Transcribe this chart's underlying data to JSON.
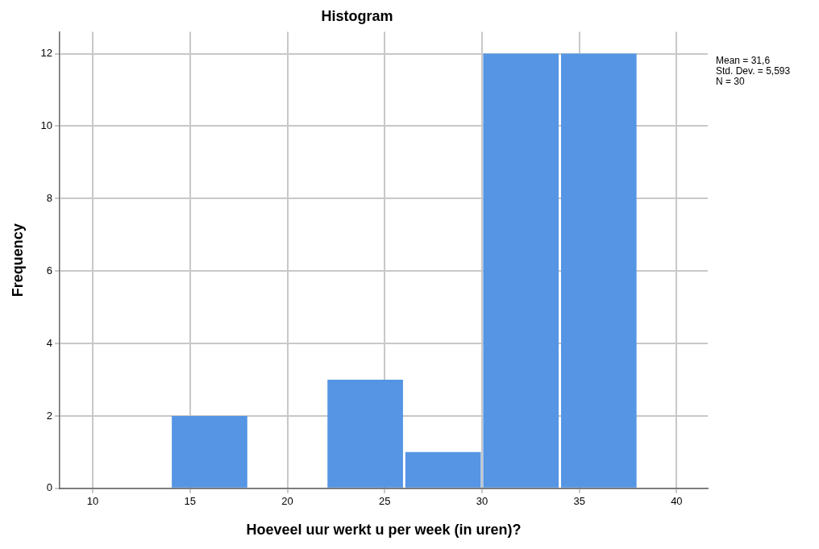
{
  "chart_data": {
    "type": "histogram",
    "title": "Histogram",
    "xlabel": "Hoeveel uur werkt u per week (in uren)?",
    "ylabel": "Frequency",
    "bins": [
      14,
      18,
      22,
      26,
      30,
      34,
      38
    ],
    "values": [
      2,
      0,
      3,
      1,
      12,
      12
    ],
    "color": "#5595e4",
    "xlim": [
      8.3,
      41.6
    ],
    "xticks": [
      10,
      15,
      20,
      25,
      30,
      35,
      40
    ],
    "ylim": [
      0,
      12.6
    ],
    "yticks": [
      0,
      2,
      4,
      6,
      8,
      10,
      12
    ],
    "grid": true,
    "annotations": [
      "Mean = 31,6",
      "Std. Dev. = 5,593",
      "N = 30"
    ]
  }
}
